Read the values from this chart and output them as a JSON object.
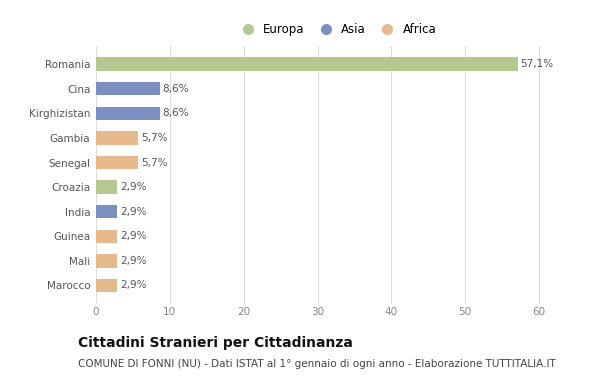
{
  "categories": [
    "Romania",
    "Cina",
    "Kirghizistan",
    "Gambia",
    "Senegal",
    "Croazia",
    "India",
    "Guinea",
    "Mali",
    "Marocco"
  ],
  "values": [
    57.1,
    8.6,
    8.6,
    5.7,
    5.7,
    2.9,
    2.9,
    2.9,
    2.9,
    2.9
  ],
  "labels": [
    "57,1%",
    "8,6%",
    "8,6%",
    "5,7%",
    "5,7%",
    "2,9%",
    "2,9%",
    "2,9%",
    "2,9%",
    "2,9%"
  ],
  "continents": [
    "Europa",
    "Asia",
    "Asia",
    "Africa",
    "Africa",
    "Europa",
    "Asia",
    "Africa",
    "Africa",
    "Africa"
  ],
  "colors": {
    "Europa": "#b5c98e",
    "Asia": "#7b8fc4",
    "Africa": "#e8b98a"
  },
  "legend_order": [
    "Europa",
    "Asia",
    "Africa"
  ],
  "xlim": [
    0,
    65
  ],
  "xticks": [
    0,
    10,
    20,
    30,
    40,
    50,
    60
  ],
  "title": "Cittadini Stranieri per Cittadinanza",
  "subtitle": "COMUNE DI FONNI (NU) - Dati ISTAT al 1° gennaio di ogni anno - Elaborazione TUTTITALIA.IT",
  "background_color": "#ffffff",
  "bar_height": 0.55,
  "title_fontsize": 10,
  "subtitle_fontsize": 7.5,
  "label_fontsize": 7.5,
  "tick_fontsize": 7.5,
  "legend_fontsize": 8.5
}
